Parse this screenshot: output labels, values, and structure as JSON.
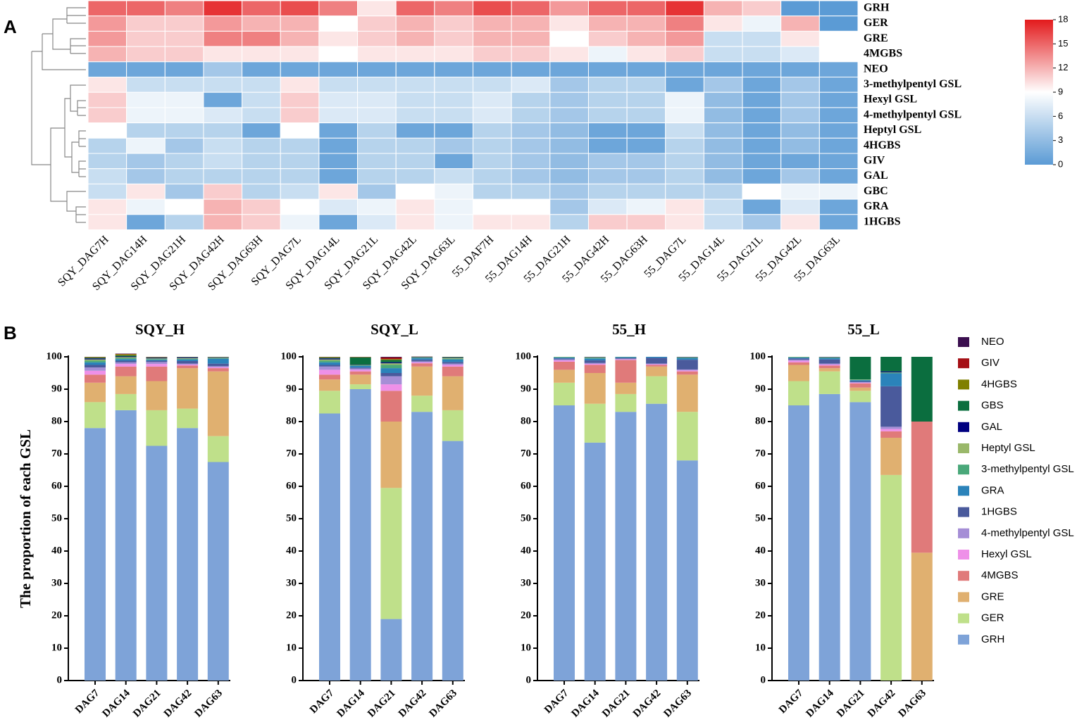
{
  "chart_data": [
    {
      "type": "heatmap",
      "panel": "A",
      "rows": [
        "GRH",
        "GER",
        "GRE",
        "4MGBS",
        "NEO",
        "3-methylpentyl GSL",
        "Hexyl GSL",
        "4-methylpentyl GSL",
        "Heptyl GSL",
        "4HGBS",
        "GIV",
        "GAL",
        "GBC",
        "GRA",
        "1HGBS"
      ],
      "columns": [
        "SQY_DAG7H",
        "SQY_DAG14H",
        "SQY_DAG21H",
        "SQY_DAG42H",
        "SQY_DAG63H",
        "SQY_DAG7L",
        "SQY_DAG14L",
        "SQY_DAG21L",
        "SQY_DAG42L",
        "SQY_DAG63L",
        "55_DAF7H",
        "55_DAG14H",
        "55_DAG21H",
        "55_DAG42H",
        "55_DAG63H",
        "55_DAG7L",
        "55_DAG14L",
        "55_DAG21L",
        "55_DAG42L",
        "55_DAG63L"
      ],
      "values": [
        [
          15,
          15,
          14,
          17,
          15,
          16,
          14,
          10,
          15,
          14,
          16,
          15,
          13,
          15,
          15,
          17,
          12,
          11,
          0,
          0
        ],
        [
          13,
          11,
          11,
          13,
          12,
          12,
          9,
          11,
          12,
          11,
          12,
          12,
          10,
          12,
          12,
          14,
          10,
          8,
          12,
          0
        ],
        [
          13,
          11,
          11,
          14,
          14,
          12,
          10,
          11,
          12,
          11,
          12,
          12,
          9,
          11,
          12,
          13,
          6,
          6,
          10,
          9
        ],
        [
          12,
          11,
          11,
          10,
          10,
          10,
          9,
          10,
          10,
          10,
          11,
          11,
          10,
          8,
          10,
          11,
          6,
          6,
          7,
          9
        ],
        [
          1,
          1,
          1,
          4,
          1,
          1,
          1,
          1,
          1,
          1,
          1,
          1,
          1,
          1,
          1,
          1,
          1,
          1,
          1,
          1
        ],
        [
          10,
          6,
          6,
          6,
          6,
          10,
          6,
          6,
          6,
          6,
          6,
          7,
          4,
          5,
          5,
          1,
          4,
          1,
          4,
          1
        ],
        [
          11,
          8,
          8,
          1,
          6,
          11,
          7,
          7,
          6,
          6,
          7,
          5,
          4,
          5,
          5,
          8,
          3,
          1,
          4,
          1
        ],
        [
          11,
          8,
          8,
          7,
          6,
          11,
          7,
          7,
          6,
          6,
          7,
          5,
          4,
          5,
          5,
          8,
          3,
          1,
          4,
          1
        ],
        [
          9,
          5,
          5,
          5,
          1,
          9,
          1,
          5,
          1,
          1,
          5,
          4,
          3,
          1,
          1,
          6,
          3,
          1,
          3,
          1
        ],
        [
          5,
          8,
          4,
          6,
          5,
          5,
          1,
          5,
          5,
          4,
          5,
          4,
          3,
          1,
          1,
          5,
          3,
          1,
          3,
          1
        ],
        [
          5,
          4,
          5,
          6,
          5,
          5,
          1,
          5,
          5,
          1,
          5,
          4,
          3,
          4,
          4,
          5,
          3,
          1,
          1,
          1
        ],
        [
          6,
          4,
          5,
          5,
          5,
          5,
          1,
          5,
          5,
          6,
          5,
          4,
          3,
          4,
          4,
          5,
          3,
          1,
          4,
          1
        ],
        [
          6,
          10,
          4,
          11,
          5,
          6,
          10,
          4,
          9,
          8,
          5,
          5,
          4,
          5,
          5,
          5,
          5,
          9,
          8,
          8
        ],
        [
          10,
          8,
          9,
          12,
          11,
          9,
          7,
          8,
          10,
          8,
          9,
          9,
          4,
          7,
          8,
          10,
          6,
          1,
          7,
          1
        ],
        [
          10,
          1,
          5,
          12,
          11,
          8,
          1,
          7,
          10,
          8,
          10,
          10,
          5,
          11,
          11,
          10,
          6,
          4,
          10,
          1
        ]
      ],
      "clim": [
        0,
        18
      ],
      "cticks": [
        0,
        3,
        6,
        9,
        12,
        15,
        18
      ],
      "colors": [
        "#5b9bd5",
        "#ffffff",
        "#e31a1c"
      ]
    },
    {
      "type": "stacked_bar_panels",
      "panel": "B",
      "ylabel": "The proportion of each GSL",
      "categories": [
        "DAG7",
        "DAG14",
        "DAG21",
        "DAG42",
        "DAG63"
      ],
      "ylim": [
        0,
        100
      ],
      "yticks": [
        0,
        10,
        20,
        30,
        40,
        50,
        60,
        70,
        80,
        90,
        100
      ],
      "series": [
        {
          "name": "GRH",
          "color": "#7ea3d8",
          "label_color": "#2f4f9f"
        },
        {
          "name": "GER",
          "color": "#bfe08a",
          "label_color": "#4e9a2a"
        },
        {
          "name": "GRE",
          "color": "#e0b070",
          "label_color": "#9a5a10"
        },
        {
          "name": "4MGBS",
          "color": "#e07a7a",
          "label_color": "#9a1010"
        },
        {
          "name": "Hexyl GSL",
          "color": "#ee90e8",
          "label_color": "#c020b0"
        },
        {
          "name": "4-methylpentyl GSL",
          "color": "#a58ed6",
          "label_color": "#6040a8"
        },
        {
          "name": "1HGBS",
          "color": "#4a5a9c",
          "label_color": "#202a70"
        },
        {
          "name": "GRA",
          "color": "#2b83ba",
          "label_color": "#1a5a8a"
        },
        {
          "name": "3-methylpentyl GSL",
          "color": "#4aa87a",
          "label_color": "#1a6a40"
        },
        {
          "name": "Heptyl GSL",
          "color": "#9ab86a",
          "label_color": "#2a6a1a"
        },
        {
          "name": "GAL",
          "color": "#000080",
          "label_color": "#2a3a8a"
        },
        {
          "name": "GBS",
          "color": "#0b6e3f",
          "label_color": "#3a8a2a"
        },
        {
          "name": "4HGBS",
          "color": "#808000",
          "label_color": "#8a6010"
        },
        {
          "name": "GIV",
          "color": "#a50f15",
          "label_color": "#a01010"
        },
        {
          "name": "NEO",
          "color": "#3b0f4f",
          "label_color": "#9030a0"
        }
      ],
      "panels": [
        {
          "title": "SQY_H",
          "series_values": [
            [
              78,
              83.5,
              72.5,
              78,
              67.5
            ],
            [
              8,
              5,
              11,
              6,
              8
            ],
            [
              6,
              5.5,
              9,
              12.5,
              20
            ],
            [
              2.5,
              3,
              4.5,
              0.8,
              1
            ],
            [
              1.2,
              0.8,
              0.8,
              0.3,
              0.3
            ],
            [
              1,
              0.5,
              0.6,
              0.3,
              0.3
            ],
            [
              0.8,
              0.5,
              0.4,
              0.8,
              0.8
            ],
            [
              0.8,
              0.5,
              0.3,
              0.5,
              1.5
            ],
            [
              0.5,
              0.3,
              0.2,
              0.2,
              0.2
            ],
            [
              0.4,
              0.3,
              0.2,
              0.2,
              0.1
            ],
            [
              0.3,
              0.2,
              0.2,
              0.2,
              0.1
            ],
            [
              0.2,
              0.3,
              0.1,
              0.1,
              0.1
            ],
            [
              0.2,
              0.4,
              0.1,
              0.05,
              0.05
            ],
            [
              0.05,
              0.1,
              0.05,
              0.03,
              0.03
            ],
            [
              0.05,
              0.1,
              0.05,
              0.02,
              0.02
            ]
          ]
        },
        {
          "title": "SQY_L",
          "series_values": [
            [
              82.5,
              90,
              19,
              83,
              74
            ],
            [
              7,
              1.5,
              40.5,
              5,
              9.5
            ],
            [
              3.5,
              3,
              20.5,
              9,
              10.5
            ],
            [
              1.5,
              1,
              9.5,
              1,
              3
            ],
            [
              1.5,
              0.5,
              2,
              0.3,
              0.5
            ],
            [
              1,
              0.4,
              2.5,
              0.3,
              0.4
            ],
            [
              0.5,
              0.3,
              1,
              0.5,
              0.5
            ],
            [
              0.8,
              0.5,
              1.5,
              0.5,
              0.8
            ],
            [
              0.5,
              0.2,
              1,
              0.1,
              0.2
            ],
            [
              0.4,
              0.1,
              0.5,
              0.1,
              0.2
            ],
            [
              0.3,
              0.1,
              0.3,
              0.1,
              0.1
            ],
            [
              0.2,
              2.2,
              0.7,
              0.1,
              0.2
            ],
            [
              0.2,
              0.1,
              0.3,
              0.05,
              0.05
            ],
            [
              0.05,
              0.05,
              0.5,
              0.03,
              0.03
            ],
            [
              0.05,
              0.05,
              0.2,
              0.02,
              0.02
            ]
          ]
        },
        {
          "title": "55_H",
          "series_values": [
            [
              85,
              73.5,
              83,
              85.5,
              68
            ],
            [
              7,
              12,
              5.5,
              8.5,
              15
            ],
            [
              4,
              9.5,
              3.5,
              3,
              11.5
            ],
            [
              2.5,
              2.5,
              7,
              0.5,
              1
            ],
            [
              0.4,
              0.3,
              0.2,
              0.2,
              0.3
            ],
            [
              0.3,
              0.3,
              0.2,
              0.2,
              0.3
            ],
            [
              0.3,
              0.8,
              0.3,
              1.8,
              3
            ],
            [
              0.3,
              0.6,
              0.2,
              0.3,
              0.5
            ],
            [
              0.1,
              0.2,
              0.1,
              0,
              0.2
            ],
            [
              0.1,
              0.2,
              0,
              0,
              0.1
            ],
            [
              0,
              0.1,
              0,
              0,
              0.1
            ],
            [
              0,
              0,
              0,
              0,
              0
            ],
            [
              0,
              0,
              0,
              0,
              0
            ],
            [
              0,
              0,
              0,
              0,
              0
            ],
            [
              0,
              0,
              0,
              0,
              0
            ]
          ]
        },
        {
          "title": "55_L",
          "series_values": [
            [
              85,
              88.5,
              86,
              0,
              0
            ],
            [
              7.5,
              7,
              3.5,
              63.5,
              0
            ],
            [
              5,
              1,
              1,
              11.5,
              39.5
            ],
            [
              0.8,
              0.8,
              1.3,
              2,
              40.5
            ],
            [
              0.5,
              0.3,
              0.2,
              0.7,
              0
            ],
            [
              0.3,
              0.3,
              0.2,
              0.7,
              0
            ],
            [
              0.4,
              1.3,
              0.3,
              12.5,
              0
            ],
            [
              0.3,
              0.4,
              0.3,
              4,
              0
            ],
            [
              0.1,
              0.2,
              0.1,
              0.2,
              0
            ],
            [
              0.1,
              0.1,
              0.1,
              0.1,
              0
            ],
            [
              0,
              0.1,
              0,
              0.3,
              0
            ],
            [
              0,
              0,
              7,
              4.5,
              20
            ],
            [
              0,
              0,
              0,
              0,
              0
            ],
            [
              0,
              0,
              0,
              0,
              0
            ],
            [
              0,
              0,
              0,
              0,
              0
            ]
          ]
        }
      ]
    }
  ]
}
